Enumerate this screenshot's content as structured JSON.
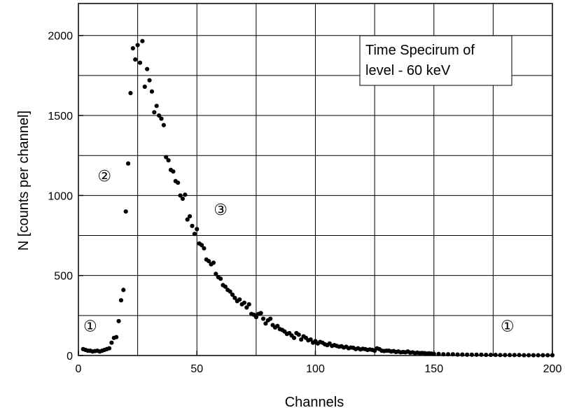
{
  "chart_data": {
    "type": "scatter",
    "title": "",
    "xlabel": "Channels",
    "ylabel": "N [counts per channel]",
    "xlim": [
      0,
      200
    ],
    "ylim": [
      0,
      2200
    ],
    "xticks": [
      0,
      50,
      100,
      150,
      200
    ],
    "yticks": [
      0,
      500,
      1000,
      1500,
      2000
    ],
    "xtick_labels": [
      "0",
      "50",
      "100",
      "150",
      "200"
    ],
    "ytick_labels": [
      "0",
      "500",
      "1000",
      "1500",
      "2000"
    ],
    "grid": true,
    "grid_step": {
      "x": 25,
      "y": 250
    },
    "marker_color": "#000000",
    "legend_box": {
      "line1": "Time Specirum of",
      "line2": "level - 60 keV",
      "position": "top-right"
    },
    "annotations": [
      {
        "text": "①",
        "x": 5,
        "y": 150
      },
      {
        "text": "②",
        "x": 11,
        "y": 1090
      },
      {
        "text": "③",
        "x": 60,
        "y": 880
      },
      {
        "text": "①",
        "x": 181,
        "y": 150
      }
    ],
    "series": [
      {
        "points": [
          [
            2,
            40
          ],
          [
            3,
            35
          ],
          [
            4,
            30
          ],
          [
            5,
            30
          ],
          [
            6,
            25
          ],
          [
            7,
            28
          ],
          [
            8,
            30
          ],
          [
            9,
            25
          ],
          [
            10,
            30
          ],
          [
            11,
            35
          ],
          [
            12,
            40
          ],
          [
            13,
            45
          ],
          [
            14,
            80
          ],
          [
            15,
            110
          ],
          [
            16,
            115
          ],
          [
            17,
            215
          ],
          [
            18,
            345
          ],
          [
            19,
            410
          ],
          [
            20,
            900
          ],
          [
            21,
            1200
          ],
          [
            22,
            1640
          ],
          [
            23,
            1920
          ],
          [
            24,
            1850
          ],
          [
            25,
            1940
          ],
          [
            26,
            1830
          ],
          [
            27,
            1965
          ],
          [
            28,
            1680
          ],
          [
            29,
            1790
          ],
          [
            30,
            1720
          ],
          [
            31,
            1650
          ],
          [
            32,
            1520
          ],
          [
            33,
            1560
          ],
          [
            34,
            1500
          ],
          [
            35,
            1480
          ],
          [
            36,
            1440
          ],
          [
            37,
            1240
          ],
          [
            38,
            1220
          ],
          [
            39,
            1160
          ],
          [
            40,
            1150
          ],
          [
            41,
            1090
          ],
          [
            42,
            1080
          ],
          [
            43,
            1000
          ],
          [
            44,
            980
          ],
          [
            45,
            1005
          ],
          [
            46,
            850
          ],
          [
            47,
            870
          ],
          [
            48,
            810
          ],
          [
            49,
            760
          ],
          [
            50,
            790
          ],
          [
            51,
            700
          ],
          [
            52,
            690
          ],
          [
            53,
            670
          ],
          [
            54,
            600
          ],
          [
            55,
            590
          ],
          [
            56,
            570
          ],
          [
            57,
            580
          ],
          [
            58,
            510
          ],
          [
            59,
            490
          ],
          [
            60,
            480
          ],
          [
            61,
            440
          ],
          [
            62,
            430
          ],
          [
            63,
            410
          ],
          [
            64,
            400
          ],
          [
            65,
            380
          ],
          [
            66,
            360
          ],
          [
            67,
            340
          ],
          [
            68,
            350
          ],
          [
            69,
            320
          ],
          [
            70,
            330
          ],
          [
            71,
            300
          ],
          [
            72,
            320
          ],
          [
            73,
            260
          ],
          [
            74,
            255
          ],
          [
            75,
            240
          ],
          [
            76,
            260
          ],
          [
            77,
            265
          ],
          [
            78,
            230
          ],
          [
            79,
            200
          ],
          [
            80,
            220
          ],
          [
            81,
            230
          ],
          [
            82,
            190
          ],
          [
            83,
            175
          ],
          [
            84,
            185
          ],
          [
            85,
            165
          ],
          [
            86,
            160
          ],
          [
            87,
            150
          ],
          [
            88,
            135
          ],
          [
            89,
            140
          ],
          [
            90,
            125
          ],
          [
            91,
            110
          ],
          [
            92,
            140
          ],
          [
            93,
            130
          ],
          [
            94,
            100
          ],
          [
            95,
            120
          ],
          [
            96,
            110
          ],
          [
            97,
            95
          ],
          [
            98,
            100
          ],
          [
            99,
            80
          ],
          [
            100,
            90
          ],
          [
            101,
            75
          ],
          [
            102,
            85
          ],
          [
            103,
            80
          ],
          [
            104,
            70
          ],
          [
            105,
            65
          ],
          [
            106,
            75
          ],
          [
            107,
            60
          ],
          [
            108,
            65
          ],
          [
            109,
            60
          ],
          [
            110,
            55
          ],
          [
            111,
            58
          ],
          [
            112,
            50
          ],
          [
            113,
            55
          ],
          [
            114,
            45
          ],
          [
            115,
            50
          ],
          [
            116,
            48
          ],
          [
            117,
            40
          ],
          [
            118,
            45
          ],
          [
            119,
            38
          ],
          [
            120,
            42
          ],
          [
            121,
            40
          ],
          [
            122,
            35
          ],
          [
            123,
            38
          ],
          [
            124,
            35
          ],
          [
            125,
            30
          ],
          [
            126,
            45
          ],
          [
            127,
            40
          ],
          [
            128,
            30
          ],
          [
            129,
            28
          ],
          [
            130,
            30
          ],
          [
            131,
            30
          ],
          [
            132,
            25
          ],
          [
            133,
            28
          ],
          [
            134,
            22
          ],
          [
            135,
            25
          ],
          [
            136,
            20
          ],
          [
            137,
            22
          ],
          [
            138,
            20
          ],
          [
            139,
            25
          ],
          [
            140,
            18
          ],
          [
            141,
            20
          ],
          [
            142,
            15
          ],
          [
            143,
            18
          ],
          [
            144,
            15
          ],
          [
            145,
            16
          ],
          [
            146,
            15
          ],
          [
            147,
            12
          ],
          [
            148,
            14
          ],
          [
            149,
            12
          ],
          [
            150,
            10
          ],
          [
            152,
            10
          ],
          [
            154,
            8
          ],
          [
            156,
            8
          ],
          [
            158,
            8
          ],
          [
            160,
            6
          ],
          [
            162,
            6
          ],
          [
            164,
            5
          ],
          [
            166,
            5
          ],
          [
            168,
            5
          ],
          [
            170,
            5
          ],
          [
            172,
            4
          ],
          [
            174,
            4
          ],
          [
            176,
            4
          ],
          [
            178,
            3
          ],
          [
            180,
            3
          ],
          [
            182,
            3
          ],
          [
            184,
            3
          ],
          [
            186,
            3
          ],
          [
            188,
            2
          ],
          [
            190,
            2
          ],
          [
            192,
            2
          ],
          [
            194,
            2
          ],
          [
            196,
            2
          ],
          [
            198,
            2
          ],
          [
            200,
            2
          ]
        ]
      }
    ]
  }
}
